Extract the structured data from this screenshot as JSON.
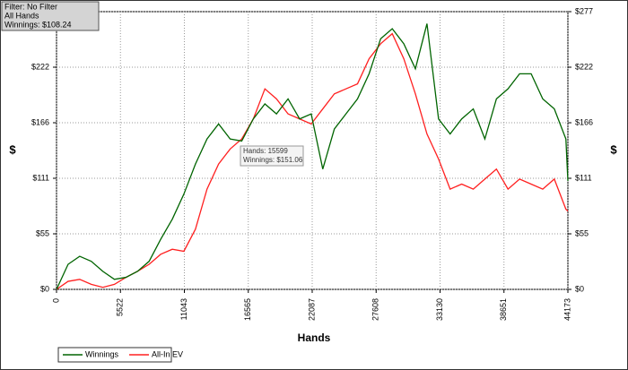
{
  "chart_data": {
    "type": "line",
    "info_box": [
      "Filter: No Filter",
      "All Hands",
      "Winnings: $108.24"
    ],
    "tooltip": [
      "Hands: 15599",
      "Winnings: $151.06"
    ],
    "xlabel": "Hands",
    "ylabel": "$",
    "y2label": "$",
    "x": [
      0,
      1000,
      2000,
      3000,
      4000,
      5000,
      6000,
      7000,
      8000,
      9000,
      10000,
      11000,
      12000,
      13000,
      14000,
      15000,
      16000,
      17000,
      18000,
      19000,
      20000,
      21000,
      22000,
      23000,
      24000,
      25000,
      26000,
      27000,
      28000,
      29000,
      30000,
      31000,
      32000,
      33000,
      34000,
      35000,
      36000,
      37000,
      38000,
      39000,
      40000,
      41000,
      42000,
      43000,
      44000,
      44173
    ],
    "series": [
      {
        "name": "Winnings",
        "color": "#006400",
        "values": [
          0,
          25,
          33,
          28,
          18,
          10,
          12,
          18,
          28,
          50,
          70,
          95,
          125,
          150,
          165,
          150,
          148,
          170,
          185,
          175,
          190,
          170,
          175,
          120,
          160,
          175,
          190,
          215,
          250,
          260,
          245,
          220,
          265,
          170,
          155,
          170,
          180,
          150,
          190,
          200,
          215,
          215,
          190,
          180,
          150,
          108.24
        ]
      },
      {
        "name": "All-In EV",
        "color": "#ff2020",
        "values": [
          0,
          8,
          10,
          5,
          2,
          5,
          12,
          18,
          25,
          35,
          40,
          38,
          60,
          100,
          125,
          140,
          150,
          170,
          200,
          190,
          175,
          170,
          165,
          180,
          195,
          200,
          205,
          230,
          245,
          255,
          230,
          195,
          155,
          130,
          100,
          105,
          100,
          110,
          120,
          100,
          110,
          105,
          100,
          110,
          80,
          78
        ]
      }
    ],
    "xlim": [
      0,
      44173
    ],
    "xticks": [
      0,
      5522,
      11043,
      16565,
      22087,
      27608,
      33130,
      38651,
      44173
    ],
    "ylim": [
      0,
      277
    ],
    "yticks": [
      {
        "value": 0,
        "label": "$0"
      },
      {
        "value": 55.4,
        "label": "$55"
      },
      {
        "value": 110.8,
        "label": "$111"
      },
      {
        "value": 166.2,
        "label": "$166"
      },
      {
        "value": 221.6,
        "label": "$222"
      },
      {
        "value": 277,
        "label": "$277"
      }
    ],
    "y2lim": [
      0,
      277
    ],
    "y2ticks": [
      {
        "value": 0,
        "label": "$0"
      },
      {
        "value": 55.4,
        "label": "$55"
      },
      {
        "value": 110.8,
        "label": "$111"
      },
      {
        "value": 166.2,
        "label": "$166"
      },
      {
        "value": 221.6,
        "label": "$222"
      },
      {
        "value": 277,
        "label": "$277"
      }
    ],
    "grid": true
  }
}
